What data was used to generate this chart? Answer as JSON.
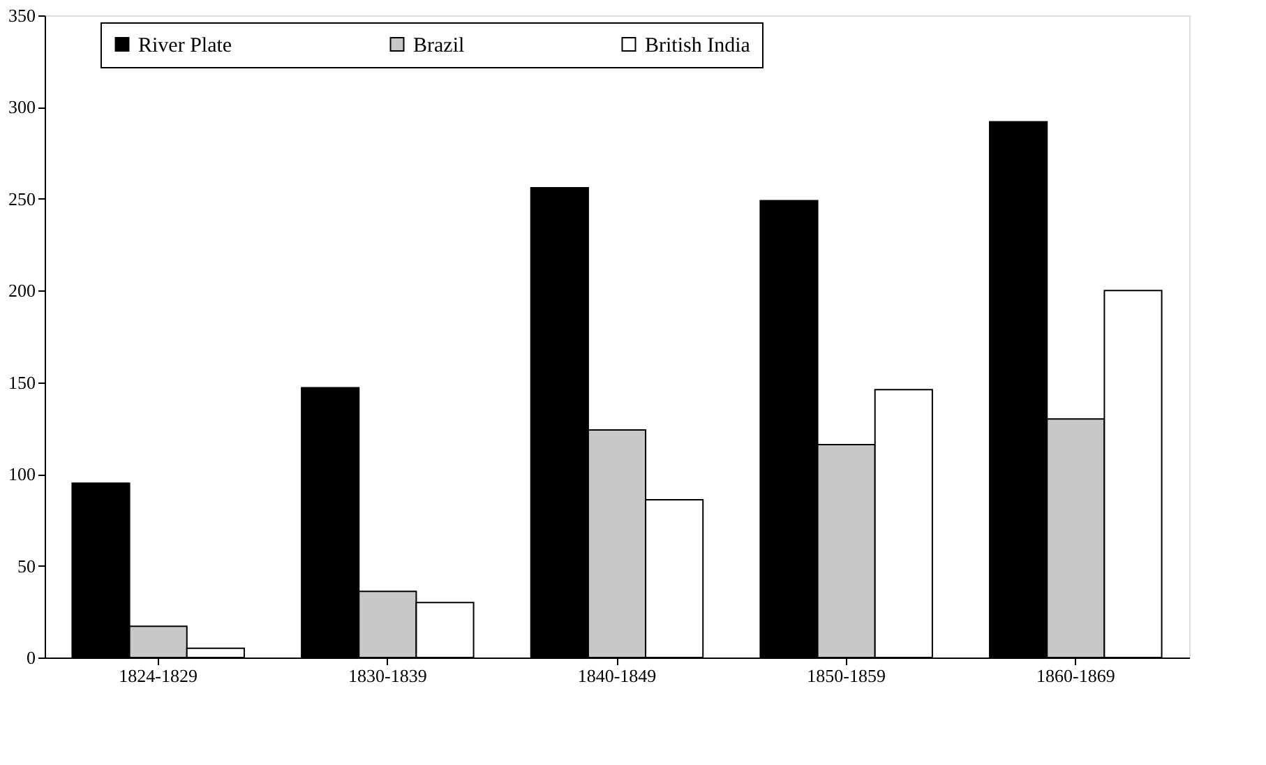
{
  "chart_data": {
    "type": "bar",
    "categories": [
      "1824-1829",
      "1830-1839",
      "1840-1849",
      "1850-1859",
      "1860-1869"
    ],
    "series": [
      {
        "name": "River Plate",
        "color": "#000000",
        "values": [
          95,
          147,
          256,
          249,
          292
        ]
      },
      {
        "name": "Brazil",
        "color": "#c8c8c8",
        "values": [
          17,
          36,
          124,
          116,
          130
        ]
      },
      {
        "name": "British India",
        "color": "#ffffff",
        "values": [
          5,
          30,
          86,
          146,
          200
        ]
      }
    ],
    "ylim": [
      0,
      350
    ],
    "yticks": [
      0,
      50,
      100,
      150,
      200,
      250,
      300,
      350
    ],
    "grid": false,
    "legend": "top"
  }
}
